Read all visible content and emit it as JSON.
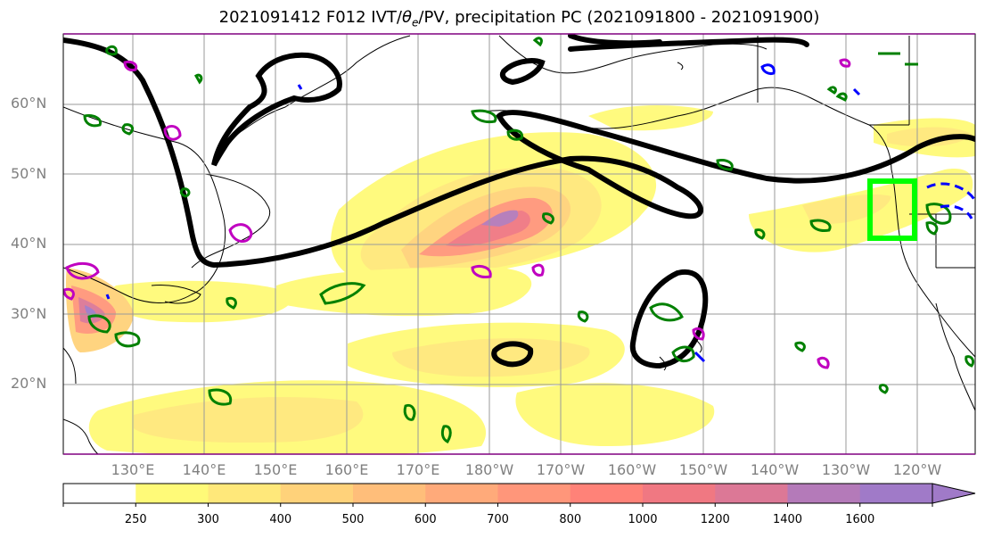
{
  "title": {
    "prefix": "2021091412 F012 IVT/",
    "theta": "θ",
    "sub": "e",
    "suffix": "/PV, precipitation PC (2021091800 - 2021091900)"
  },
  "map": {
    "lon_range": [
      120,
      245
    ],
    "lat_range": [
      10,
      70
    ],
    "lat_ticks": [
      {
        "lat": 60,
        "label": "60°N"
      },
      {
        "lat": 50,
        "label": "50°N"
      },
      {
        "lat": 40,
        "label": "40°N"
      },
      {
        "lat": 30,
        "label": "30°N"
      },
      {
        "lat": 20,
        "label": "20°N"
      }
    ],
    "lon_ticks": [
      {
        "lon": 130,
        "label": "130°E"
      },
      {
        "lon": 140,
        "label": "140°E"
      },
      {
        "lon": 150,
        "label": "150°E"
      },
      {
        "lon": 160,
        "label": "160°E"
      },
      {
        "lon": 170,
        "label": "170°E"
      },
      {
        "lon": 180,
        "label": "180°W"
      },
      {
        "lon": 190,
        "label": "170°W"
      },
      {
        "lon": 200,
        "label": "160°W"
      },
      {
        "lon": 210,
        "label": "150°W"
      },
      {
        "lon": 220,
        "label": "140°W"
      },
      {
        "lon": 230,
        "label": "130°W"
      },
      {
        "lon": 240,
        "label": "120°W"
      }
    ],
    "target_box": {
      "lon_min": 234.5,
      "lon_max": 241,
      "lat_min": 41,
      "lat_max": 49,
      "color": "#00ff00"
    }
  },
  "colorbar": {
    "levels": [
      250,
      300,
      400,
      500,
      600,
      700,
      800,
      1000,
      1200,
      1400,
      1600
    ],
    "colors": [
      "#ffffff",
      "#fffa78",
      "#ffe87a",
      "#ffd27a",
      "#ffbe7a",
      "#ffaa7a",
      "#ff967a",
      "#ff8278",
      "#f07882",
      "#dc7896",
      "#b47ab9",
      "#a07ac8"
    ]
  }
}
